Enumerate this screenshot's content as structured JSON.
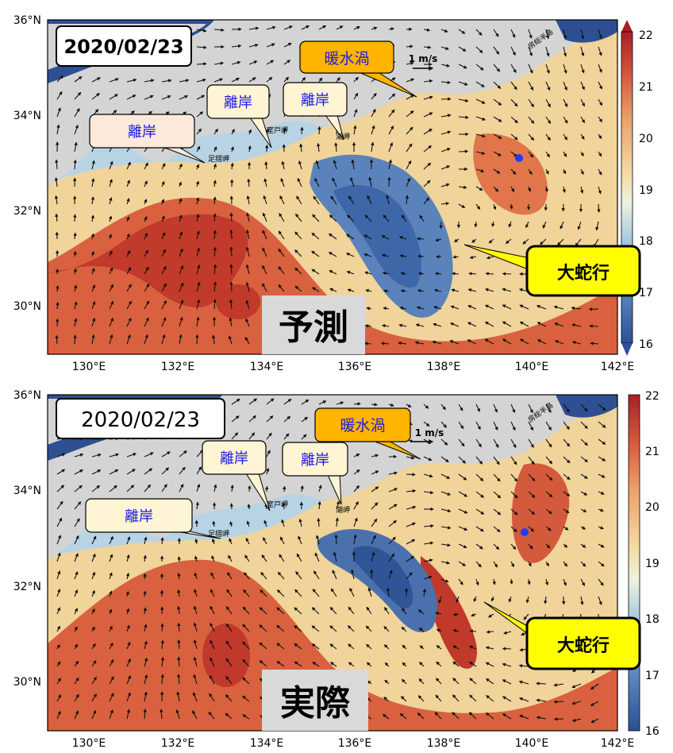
{
  "panels": [
    {
      "id": "forecast",
      "date": "2020/02/23",
      "label": "予測",
      "callouts": {
        "offshore1": "離岸",
        "offshore2": "離岸",
        "offshore3": "離岸",
        "warm_eddy": "暖水渦",
        "meander": "大蛇行"
      }
    },
    {
      "id": "actual",
      "date": "2020/02/23",
      "label": "実際",
      "callouts": {
        "offshore1": "離岸",
        "offshore2": "離岸",
        "offshore3": "離岸",
        "warm_eddy": "暖水渦",
        "meander": "大蛇行"
      }
    }
  ],
  "place_labels": {
    "ashizuri": "足摺岬",
    "muroto": "室戸岬",
    "shiono": "潮岬",
    "boso": "房総半島"
  },
  "vector_scale": "1 m/s",
  "axes": {
    "x_ticks": [
      "130°E",
      "132°E",
      "134°E",
      "136°E",
      "138°E",
      "140°E",
      "142°E"
    ],
    "y_ticks": [
      "30°N",
      "32°N",
      "34°N",
      "36°N"
    ],
    "lon_range": [
      129,
      142
    ],
    "lat_range": [
      29,
      36
    ]
  },
  "colorbar": {
    "ticks": [
      "16",
      "17",
      "18",
      "19",
      "20",
      "21",
      "22"
    ],
    "range": [
      16,
      22
    ],
    "colors": [
      "#2c4f96",
      "#5b8ac0",
      "#a6c9e0",
      "#eef2dd",
      "#f3d9a0",
      "#eba06a",
      "#d45a3c",
      "#a91f26"
    ]
  },
  "colors": {
    "land": "#d4d4d4",
    "callout_warm": "#ffb400",
    "callout_meander": "#ffff00",
    "callout_offshore": "#fff4d4",
    "callout_text": "#1a1ae6",
    "marker": "#1f3cff"
  }
}
